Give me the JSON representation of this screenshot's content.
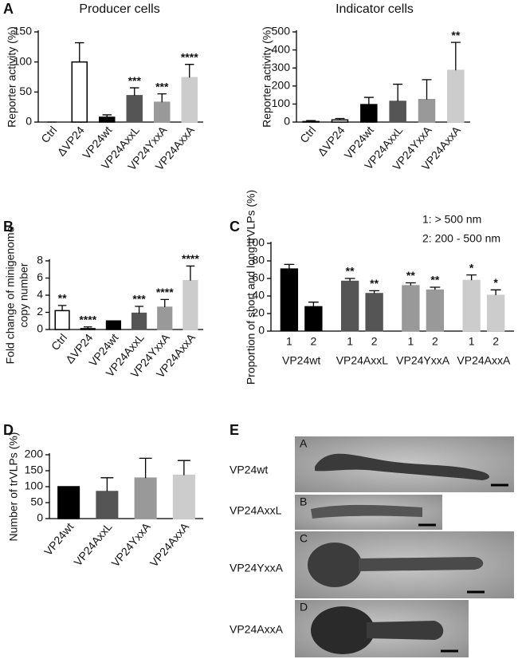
{
  "chart_data": [
    {
      "type": "bar",
      "panel": "A",
      "title": "Producer cells",
      "y_label": "Reporter activity (%)",
      "categories": [
        "Ctrl",
        "ΔVP24",
        "VP24wt",
        "VP24AxxL",
        "VP24YxxA",
        "VP24AxxA"
      ],
      "values": [
        0,
        100,
        8,
        44,
        33,
        74
      ],
      "errors": [
        0,
        32,
        4,
        13,
        14,
        22
      ],
      "colors": [
        "#000000",
        "#ffffff",
        "#000000",
        "#555555",
        "#999999",
        "#cccccc"
      ],
      "significance": [
        null,
        null,
        null,
        "***",
        "***",
        "****"
      ],
      "ylim": [
        0,
        150
      ],
      "yticks": [
        0,
        50,
        100,
        150
      ]
    },
    {
      "type": "bar",
      "title": "Indicator cells",
      "y_label": "Reporter activity (%)",
      "categories": [
        "Ctrl",
        "ΔVP24",
        "VP24wt",
        "VP24AxxL",
        "VP24YxxA",
        "VP24AxxA"
      ],
      "values": [
        3,
        12,
        97,
        115,
        125,
        287
      ],
      "errors": [
        5,
        8,
        40,
        95,
        110,
        155
      ],
      "colors": [
        "#000000",
        "#ffffff",
        "#000000",
        "#555555",
        "#999999",
        "#cccccc"
      ],
      "significance": [
        null,
        null,
        null,
        null,
        null,
        "**"
      ],
      "ylim": [
        0,
        500
      ],
      "yticks": [
        0,
        100,
        200,
        300,
        400,
        500
      ]
    },
    {
      "type": "bar",
      "panel": "B",
      "y_label": [
        "Fold change of minigenome",
        "copy number"
      ],
      "categories": [
        "Ctrl",
        "ΔVP24",
        "VP24wt",
        "VP24AxxL",
        "VP24YxxA",
        "VP24AxxA"
      ],
      "values": [
        2.2,
        0.1,
        1,
        1.9,
        2.6,
        5.7
      ],
      "errors": [
        0.6,
        0.2,
        null,
        0.8,
        0.9,
        1.7
      ],
      "colors": [
        "#ffffff",
        "#ffffff",
        "#000000",
        "#555555",
        "#999999",
        "#cccccc"
      ],
      "significance": [
        "**",
        "****",
        null,
        "***",
        "****",
        "****"
      ],
      "ylim": [
        0,
        8
      ],
      "yticks": [
        0,
        2,
        4,
        6,
        8
      ]
    },
    {
      "type": "grouped_bar",
      "panel": "C",
      "y_label": "Proportion of short and long trVLPs (%)",
      "legend": [
        "1: > 500 nm",
        "2: 200 - 500 nm"
      ],
      "categories": [
        "VP24wt",
        "VP24AxxL",
        "VP24YxxA",
        "VP24AxxA"
      ],
      "colors": [
        "#000000",
        "#555555",
        "#999999",
        "#cccccc"
      ],
      "series": [
        {
          "name": "1",
          "values": [
            71,
            57,
            52,
            58
          ],
          "errors": [
            5,
            3,
            3,
            6
          ],
          "significance": [
            null,
            "**",
            "**",
            "*"
          ]
        },
        {
          "name": "2",
          "values": [
            28,
            43,
            47,
            41
          ],
          "errors": [
            5,
            3,
            3,
            6
          ],
          "significance": [
            null,
            "**",
            "**",
            "*"
          ]
        }
      ],
      "ylim": [
        0,
        100
      ],
      "yticks": [
        0,
        20,
        40,
        60,
        80,
        100
      ]
    },
    {
      "type": "bar",
      "panel": "D",
      "y_label": "Number of trVLPs (%)",
      "categories": [
        "VP24wt",
        "VP24AxxL",
        "VP24YxxA",
        "VP24AxxA"
      ],
      "values": [
        100,
        85,
        127,
        136
      ],
      "errors": [
        null,
        43,
        62,
        46
      ],
      "colors": [
        "#000000",
        "#555555",
        "#999999",
        "#cccccc"
      ],
      "ylim": [
        0,
        200
      ],
      "yticks": [
        0,
        50,
        100,
        150,
        200
      ]
    }
  ],
  "micrographs": {
    "panel": "E",
    "rows": [
      {
        "label": "VP24wt",
        "letter": "A"
      },
      {
        "label": "VP24AxxL",
        "letter": "B"
      },
      {
        "label": "VP24YxxA",
        "letter": "C"
      },
      {
        "label": "VP24AxxA",
        "letter": "D"
      }
    ]
  }
}
